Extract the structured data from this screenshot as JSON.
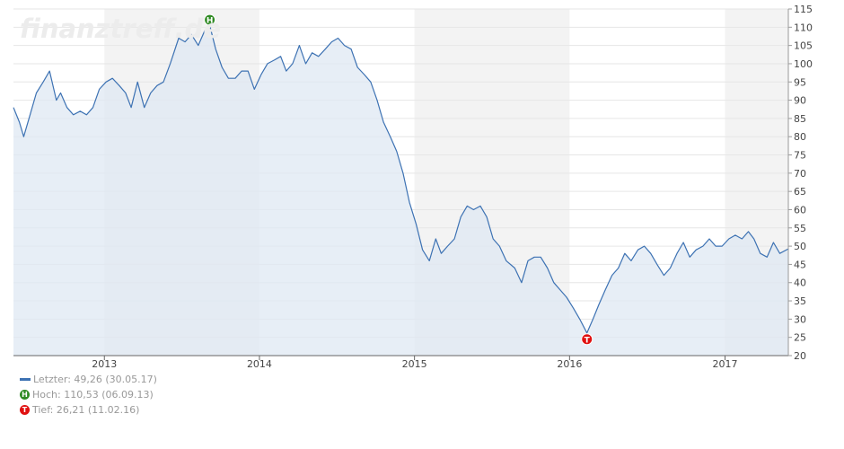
{
  "watermark": "finanztreff.de",
  "colors": {
    "line": "#3d72b3",
    "fill": "#dfe8f3",
    "band": "#f3f3f3",
    "high": "#2f8a23",
    "low": "#e01010"
  },
  "legend": {
    "last": "Letzter: 49,26 (30.05.17)",
    "high": "Hoch: 110,53 (06.09.13)",
    "low": "Tief: 26,21 (11.02.16)",
    "high_badge": "H",
    "low_badge": "T"
  },
  "chart_data": {
    "type": "area",
    "title": "",
    "xlabel": "",
    "ylabel": "",
    "ylim": [
      20,
      115
    ],
    "y_ticks": [
      20,
      25,
      30,
      35,
      40,
      45,
      50,
      55,
      60,
      65,
      70,
      75,
      80,
      85,
      90,
      95,
      100,
      105,
      110,
      115
    ],
    "x_tick_labels": [
      "2013",
      "2014",
      "2015",
      "2016",
      "2017"
    ],
    "x_range": [
      "2012-06-01",
      "2017-05-30"
    ],
    "grid": true,
    "shaded_years": [
      "2013",
      "2015",
      "2017"
    ],
    "series": [
      {
        "x": [
          "2012-06-01",
          "2012-06-15",
          "2012-06-25",
          "2012-07-10",
          "2012-07-25",
          "2012-08-10",
          "2012-08-25",
          "2012-09-10",
          "2012-09-20",
          "2012-10-05",
          "2012-10-20",
          "2012-11-05",
          "2012-11-20",
          "2012-12-05",
          "2012-12-20",
          "2013-01-05",
          "2013-01-20",
          "2013-02-05",
          "2013-02-20",
          "2013-03-05",
          "2013-03-20",
          "2013-04-05",
          "2013-04-20",
          "2013-05-05",
          "2013-05-20",
          "2013-06-05",
          "2013-06-25",
          "2013-07-10",
          "2013-07-25",
          "2013-08-10",
          "2013-08-25",
          "2013-09-06",
          "2013-09-20",
          "2013-10-05",
          "2013-10-20",
          "2013-11-05",
          "2013-11-20",
          "2013-12-05",
          "2013-12-20",
          "2014-01-05",
          "2014-01-20",
          "2014-02-05",
          "2014-02-20",
          "2014-03-05",
          "2014-03-20",
          "2014-04-05",
          "2014-04-20",
          "2014-05-05",
          "2014-05-20",
          "2014-06-05",
          "2014-06-20",
          "2014-07-05",
          "2014-07-20",
          "2014-08-05",
          "2014-08-20",
          "2014-09-05",
          "2014-09-20",
          "2014-10-05",
          "2014-10-20",
          "2014-11-05",
          "2014-11-20",
          "2014-12-05",
          "2014-12-20",
          "2015-01-05",
          "2015-01-20",
          "2015-02-05",
          "2015-02-20",
          "2015-03-05",
          "2015-03-20",
          "2015-04-05",
          "2015-04-20",
          "2015-05-05",
          "2015-05-20",
          "2015-06-05",
          "2015-06-20",
          "2015-07-05",
          "2015-07-20",
          "2015-08-05",
          "2015-08-25",
          "2015-09-10",
          "2015-09-25",
          "2015-10-10",
          "2015-10-25",
          "2015-11-10",
          "2015-11-25",
          "2015-12-10",
          "2015-12-25",
          "2016-01-10",
          "2016-01-25",
          "2016-02-11",
          "2016-02-25",
          "2016-03-10",
          "2016-03-25",
          "2016-04-10",
          "2016-04-25",
          "2016-05-10",
          "2016-05-25",
          "2016-06-10",
          "2016-06-25",
          "2016-07-10",
          "2016-07-25",
          "2016-08-10",
          "2016-08-25",
          "2016-09-10",
          "2016-09-25",
          "2016-10-10",
          "2016-10-25",
          "2016-11-10",
          "2016-11-25",
          "2016-12-10",
          "2016-12-25",
          "2017-01-10",
          "2017-01-25",
          "2017-02-10",
          "2017-02-25",
          "2017-03-10",
          "2017-03-25",
          "2017-04-10",
          "2017-04-25",
          "2017-05-10",
          "2017-05-30"
        ],
        "values": [
          88,
          84,
          80,
          86,
          92,
          95,
          98,
          90,
          92,
          88,
          86,
          87,
          86,
          88,
          93,
          95,
          96,
          94,
          92,
          88,
          95,
          88,
          92,
          94,
          95,
          100,
          107,
          106,
          108,
          105,
          109,
          110.53,
          104,
          99,
          96,
          96,
          98,
          98,
          93,
          97,
          100,
          101,
          102,
          98,
          100,
          105,
          100,
          103,
          102,
          104,
          106,
          107,
          105,
          104,
          99,
          97,
          95,
          90,
          84,
          80,
          76,
          70,
          62,
          56,
          49,
          46,
          52,
          48,
          50,
          52,
          58,
          61,
          60,
          61,
          58,
          52,
          50,
          46,
          44,
          40,
          46,
          47,
          47,
          44,
          40,
          38,
          36,
          33,
          30,
          26.21,
          30,
          34,
          38,
          42,
          44,
          48,
          46,
          49,
          50,
          48,
          45,
          42,
          44,
          48,
          51,
          47,
          49,
          50,
          52,
          50,
          50,
          52,
          53,
          52,
          54,
          52,
          48,
          47,
          51,
          48,
          49.26
        ]
      }
    ],
    "annotations": [
      {
        "label": "H",
        "x": "2013-09-06",
        "y": 110.53
      },
      {
        "label": "T",
        "x": "2016-02-11",
        "y": 26.21
      }
    ]
  }
}
